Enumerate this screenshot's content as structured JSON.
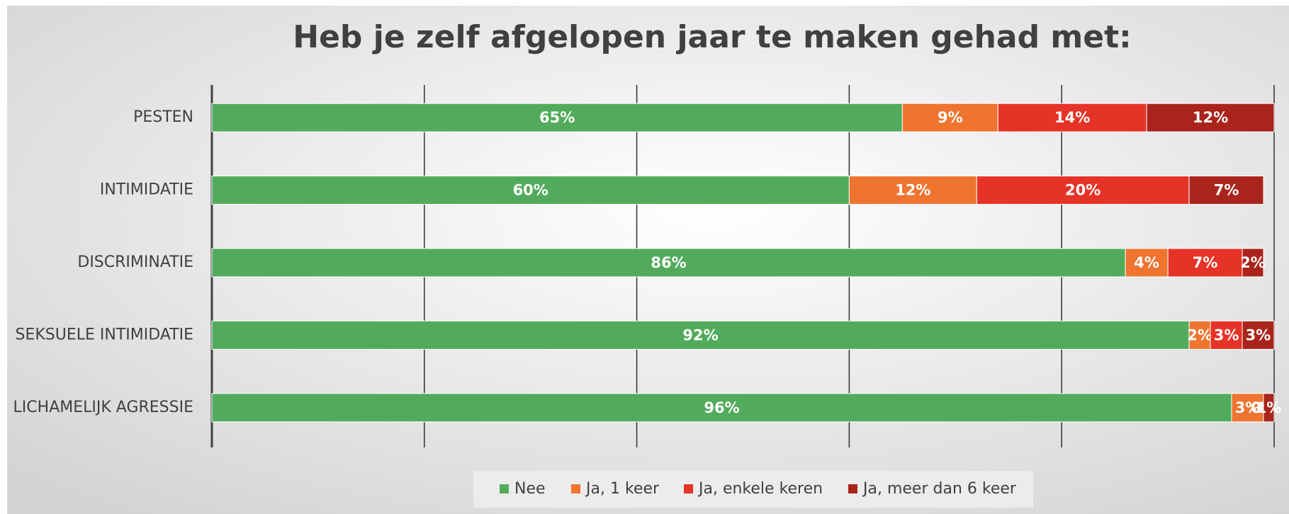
{
  "chart_data": {
    "type": "stacked_barh",
    "title": "Heb je zelf afgelopen jaar te maken gehad met:",
    "categories": [
      "PESTEN",
      "INTIMIDATIE",
      "DISCRIMINATIE",
      "SEKSUELE INTIMIDATIE",
      "LICHAMELIJK AGRESSIE"
    ],
    "series": [
      {
        "name": "Nee",
        "color": "#52ab5c",
        "values": [
          65,
          60,
          86,
          92,
          96
        ],
        "value_labels": [
          "65%",
          "60%",
          "86%",
          "92%",
          "96%"
        ]
      },
      {
        "name": "Ja, 1 keer",
        "color": "#ee7430",
        "values": [
          9,
          12,
          4,
          2,
          3
        ],
        "value_labels": [
          "9%",
          "12%",
          "4%",
          "2%",
          "3%"
        ]
      },
      {
        "name": "Ja, enkele keren",
        "color": "#e63327",
        "values": [
          14,
          20,
          7,
          3,
          0
        ],
        "value_labels": [
          "14%",
          "20%",
          "7%",
          "3%",
          "0%"
        ]
      },
      {
        "name": "Ja, meer dan 6 keer",
        "color": "#a9241b",
        "values": [
          12,
          7,
          2,
          3,
          1
        ],
        "value_labels": [
          "12%",
          "7%",
          "2%",
          "3%",
          "1%"
        ]
      }
    ],
    "xlim": [
      0,
      100
    ],
    "xticks": [
      0,
      20,
      40,
      60,
      80,
      100
    ],
    "grid": true,
    "legend": "bottom"
  }
}
